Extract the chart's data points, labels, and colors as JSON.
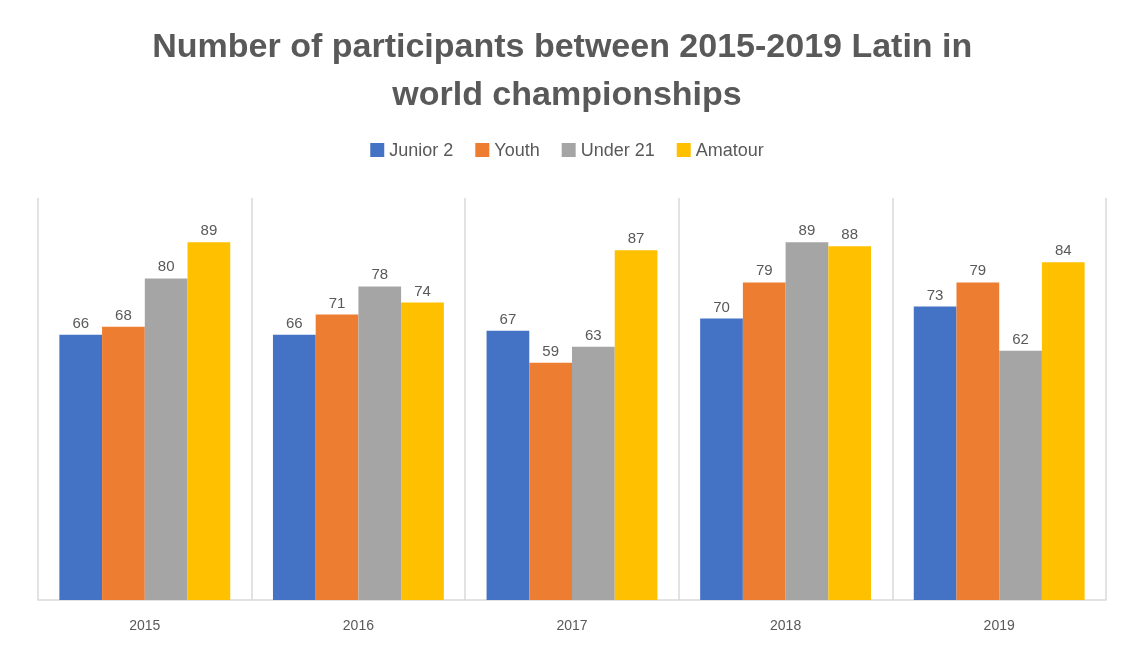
{
  "chart_data": {
    "type": "bar",
    "title": "Number of participants between 2015-2019 Latin in world championships",
    "categories": [
      "2015",
      "2016",
      "2017",
      "2018",
      "2019"
    ],
    "series": [
      {
        "name": "Junior 2",
        "color": "#4472c4",
        "values": [
          66,
          66,
          67,
          70,
          73
        ]
      },
      {
        "name": "Youth",
        "color": "#ed7d31",
        "values": [
          68,
          71,
          59,
          79,
          79
        ]
      },
      {
        "name": "Under 21",
        "color": "#a5a5a5",
        "values": [
          80,
          78,
          63,
          89,
          62
        ]
      },
      {
        "name": "Amatour",
        "color": "#ffc000",
        "values": [
          89,
          74,
          87,
          88,
          84
        ]
      }
    ],
    "ylim": [
      0,
      100
    ],
    "data_labels": true,
    "grid": "x",
    "legend": "top",
    "tick_labels": "x"
  }
}
